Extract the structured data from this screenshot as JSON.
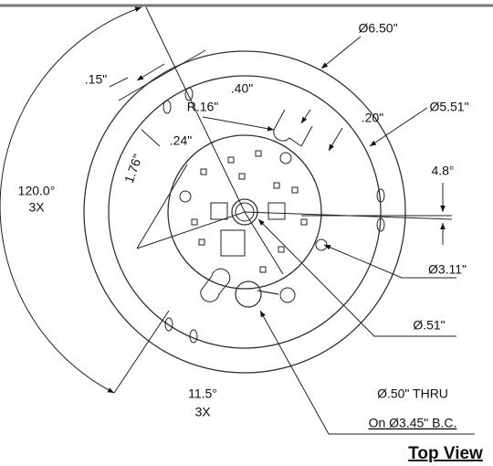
{
  "dimensions": {
    "outer_diameter": "Ø6.50\"",
    "slot_width": ".15\"",
    "slot_length": ".40\"",
    "slot_radius": "R.16\"",
    "slot_offset": ".20\"",
    "inner_diameter": "Ø5.51\"",
    "slot_gap": ".24\"",
    "pcb_radius": "1.76\"",
    "slot_angle": "120.0°",
    "slot_angle_count": "3X",
    "hole_angle": "4.8°",
    "pcb_diameter": "Ø3.11\"",
    "hub_diameter": "Ø.51\"",
    "hole_spacing_angle": "11.5°",
    "hole_spacing_count": "3X",
    "thru_hole": "Ø.50\" THRU",
    "bolt_circle": "On Ø3.45\" B.C."
  },
  "title": "Top View"
}
